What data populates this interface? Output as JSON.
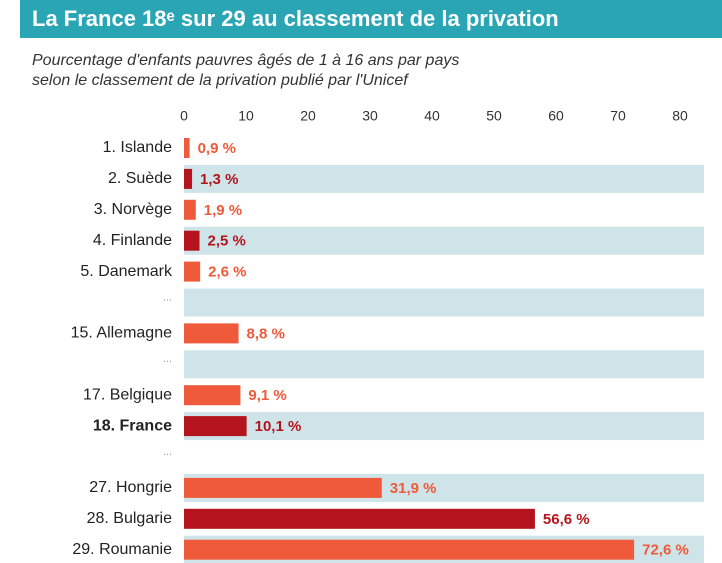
{
  "chart_data": {
    "type": "bar",
    "orientation": "horizontal",
    "title": "La France 18ᵉ sur 29 au classement de la privation",
    "subtitle": [
      "Pourcentage d'enfants pauvres âgés de 1 à 16 ans par pays",
      "selon le classement de la privation publié par l'Unicef"
    ],
    "categories": [
      "1. Islande",
      "2. Suède",
      "3. Norvège",
      "4. Finlande",
      "5. Danemark",
      "...",
      "15. Allemagne",
      "...",
      "17. Belgique",
      "18. France",
      "...",
      "27. Hongrie",
      "28. Bulgarie",
      "29. Roumanie"
    ],
    "values": [
      0.9,
      1.3,
      1.9,
      2.5,
      2.6,
      null,
      8.8,
      null,
      9.1,
      10.1,
      null,
      31.9,
      56.6,
      72.6
    ],
    "value_labels": [
      "0,9 %",
      "1,3 %",
      "1,9 %",
      "2,5 %",
      "2,6 %",
      null,
      "8,8 %",
      null,
      "9,1 %",
      "10,1 %",
      null,
      "31,9 %",
      "56,6 %",
      "72,6 %"
    ],
    "colors": [
      "#ef5a3a",
      "#b3141d",
      "#ef5a3a",
      "#b3141d",
      "#ef5a3a",
      null,
      "#ef5a3a",
      null,
      "#ef5a3a",
      "#b3141d",
      null,
      "#ef5a3a",
      "#b3141d",
      "#ef5a3a"
    ],
    "highlight_index": 9,
    "xlim": [
      0,
      80
    ],
    "xticks": [
      0,
      10,
      20,
      30,
      40,
      50,
      60,
      70,
      80
    ],
    "band_color": "#cfe4e8"
  }
}
